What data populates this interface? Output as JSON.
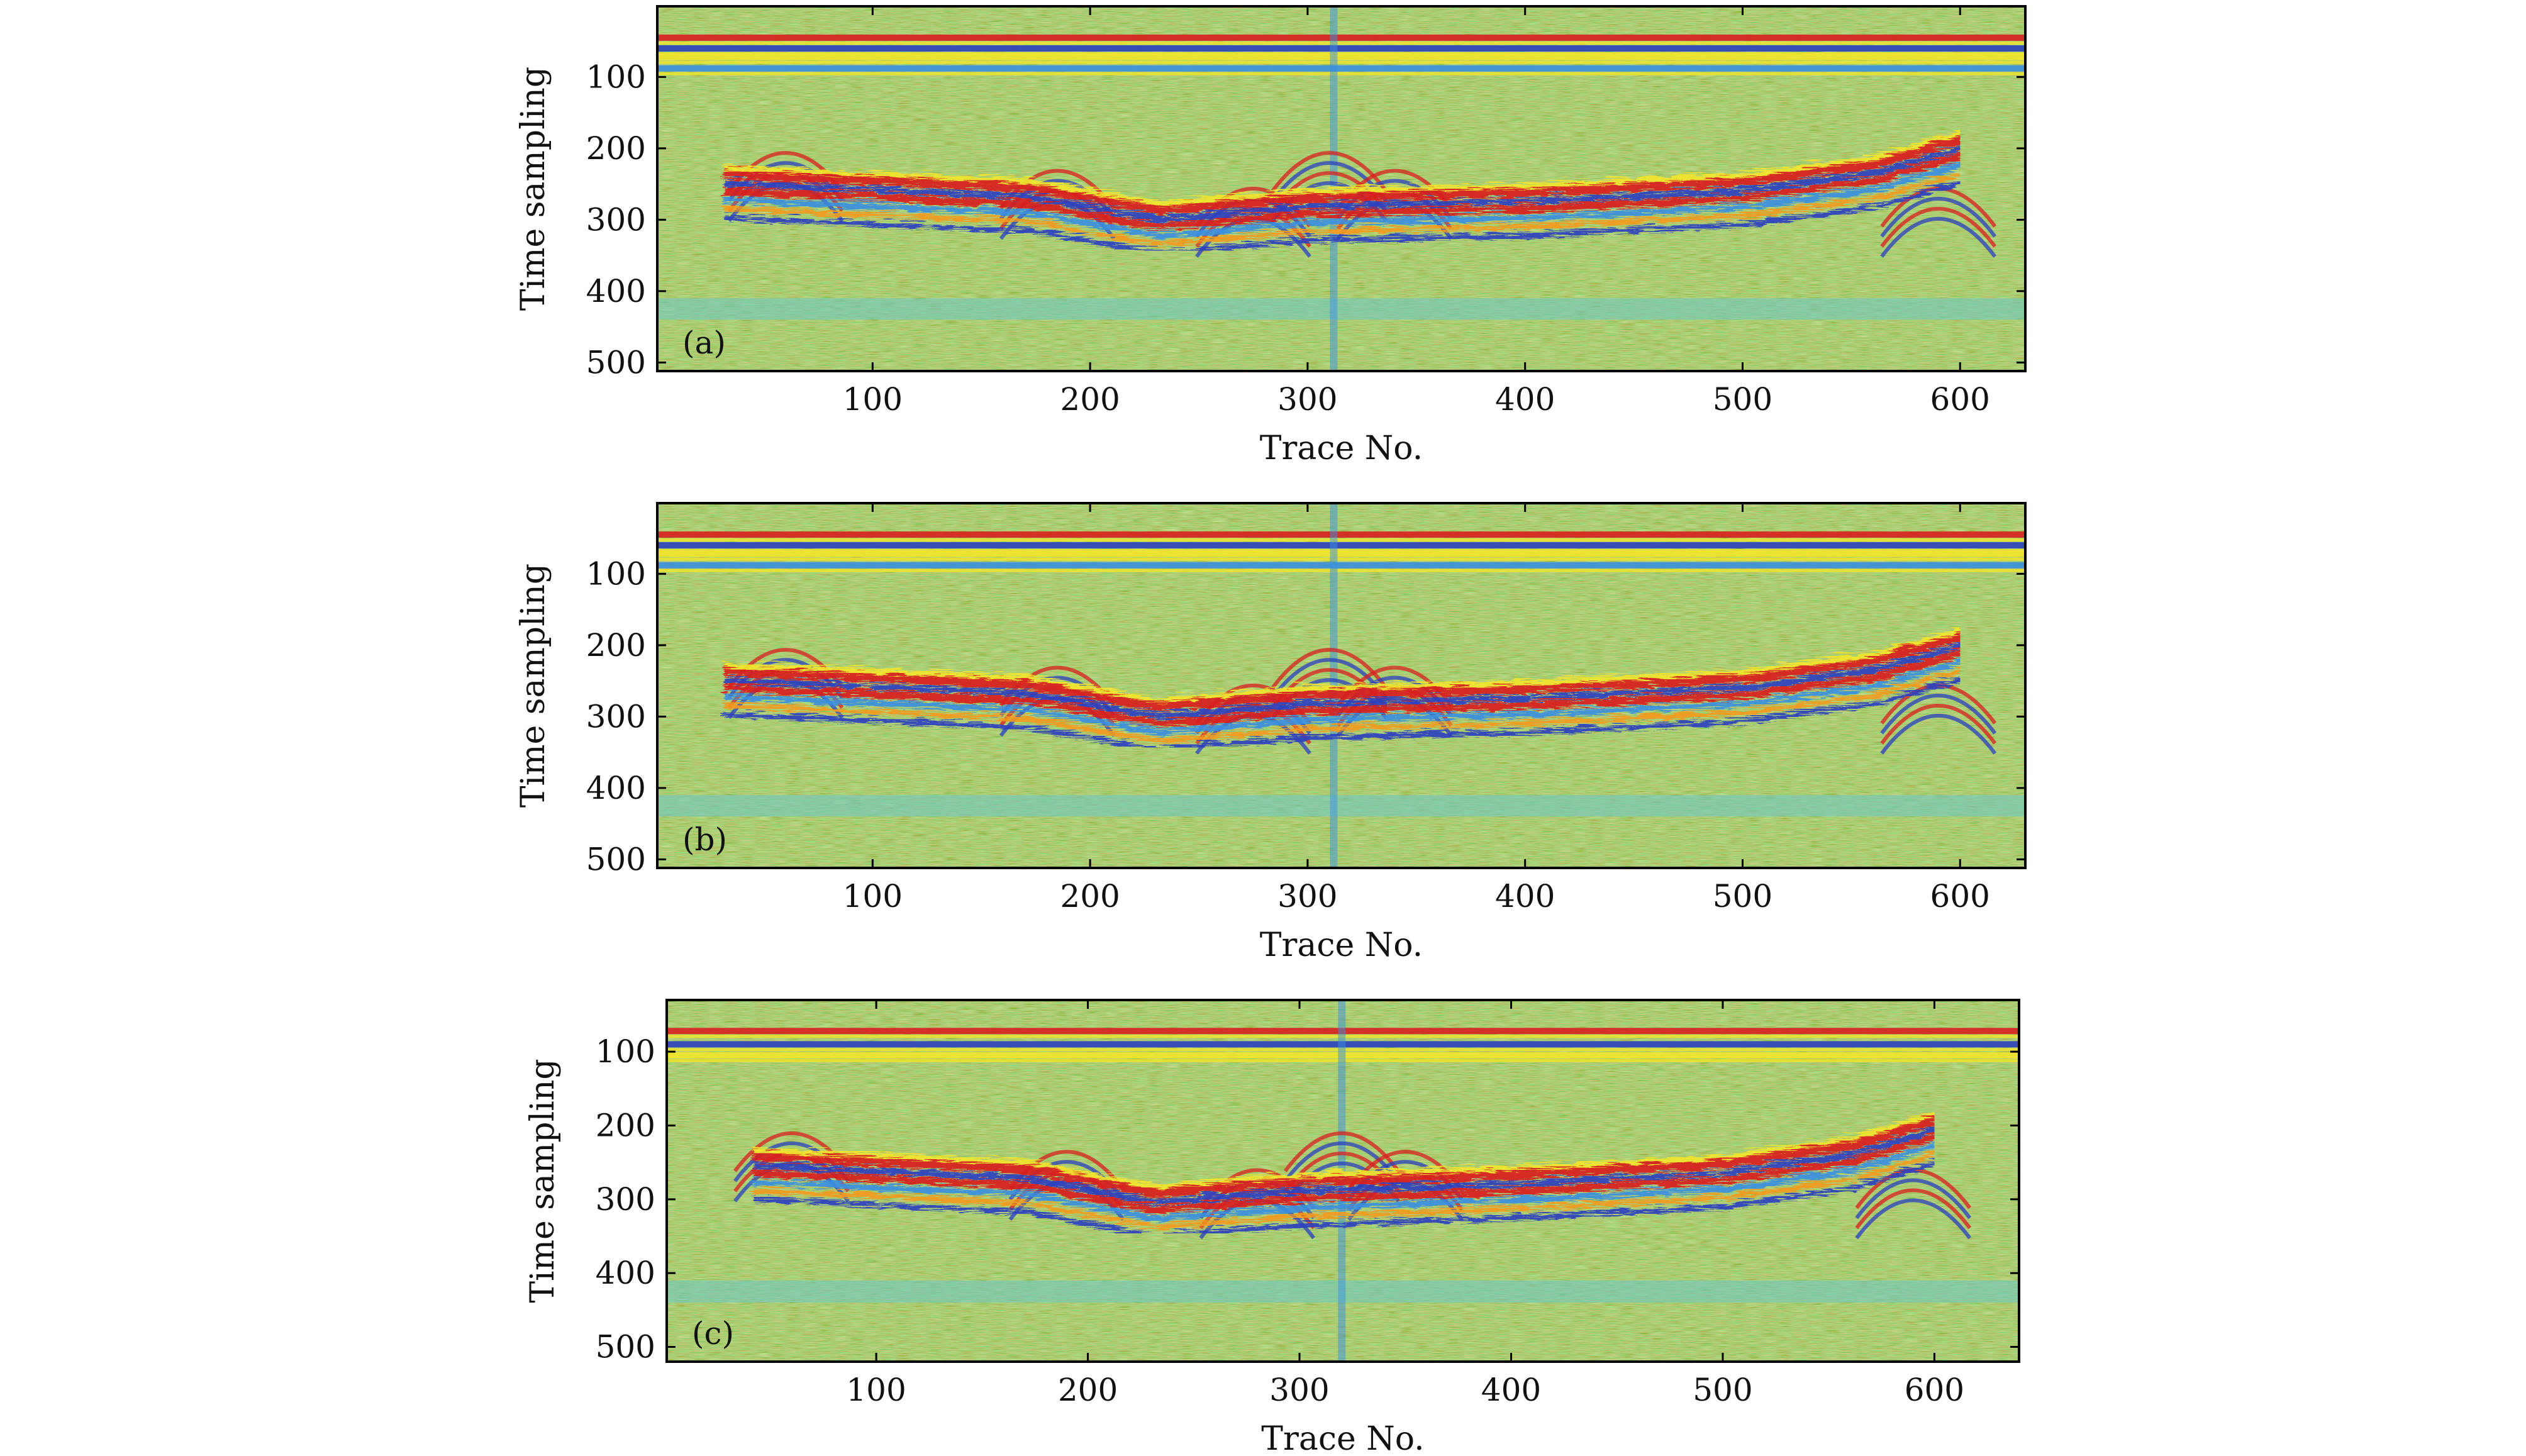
{
  "chart_data": [
    {
      "type": "heatmap",
      "panel_label": "(a)",
      "xlabel": "Trace No.",
      "ylabel": "Time sampling",
      "xticks": [
        "100",
        "200",
        "300",
        "400",
        "500",
        "600"
      ],
      "yticks": [
        "100",
        "200",
        "300",
        "400",
        "500"
      ],
      "xlim": [
        1,
        630
      ],
      "ylim": [
        512,
        1
      ],
      "y_axis_inverted": true,
      "colormap": [
        "#2a3fbf",
        "#3a8fe0",
        "#6cc7c9",
        "#a9d35f",
        "#f2e52a",
        "#f39a1e",
        "#d81f1f"
      ],
      "features": {
        "direct_wave_bands_time": [
          45,
          60,
          72,
          88
        ],
        "main_reflector": [
          {
            "trace": 30,
            "time": 240
          },
          {
            "trace": 170,
            "time": 258
          },
          {
            "trace": 230,
            "time": 290
          },
          {
            "trace": 300,
            "time": 272
          },
          {
            "trace": 400,
            "time": 265
          },
          {
            "trace": 500,
            "time": 250
          },
          {
            "trace": 560,
            "time": 225
          },
          {
            "trace": 600,
            "time": 190
          }
        ],
        "hyperbola_apex_traces": [
          60,
          185,
          275,
          310,
          340,
          590
        ],
        "bright_column_trace": 312,
        "low_band_time": [
          410,
          440
        ]
      }
    },
    {
      "type": "heatmap",
      "panel_label": "(b)",
      "xlabel": "Trace No.",
      "ylabel": "Time sampling",
      "xticks": [
        "100",
        "200",
        "300",
        "400",
        "500",
        "600"
      ],
      "yticks": [
        "100",
        "200",
        "300",
        "400",
        "500"
      ],
      "xlim": [
        1,
        630
      ],
      "ylim": [
        512,
        1
      ],
      "y_axis_inverted": true,
      "colormap": [
        "#2a3fbf",
        "#3a8fe0",
        "#6cc7c9",
        "#a9d35f",
        "#f2e52a",
        "#f39a1e",
        "#d81f1f"
      ],
      "features": {
        "direct_wave_bands_time": [
          45,
          60,
          72,
          88
        ],
        "main_reflector": [
          {
            "trace": 30,
            "time": 240
          },
          {
            "trace": 170,
            "time": 258
          },
          {
            "trace": 230,
            "time": 290
          },
          {
            "trace": 300,
            "time": 272
          },
          {
            "trace": 400,
            "time": 265
          },
          {
            "trace": 500,
            "time": 250
          },
          {
            "trace": 560,
            "time": 225
          },
          {
            "trace": 600,
            "time": 190
          }
        ],
        "hyperbola_apex_traces": [
          60,
          185,
          275,
          310,
          340,
          590
        ],
        "bright_column_trace": 312,
        "low_band_time": [
          410,
          440
        ]
      }
    },
    {
      "type": "heatmap",
      "panel_label": "(c)",
      "xlabel": "Trace No.",
      "ylabel": "Time sampling",
      "xticks": [
        "100",
        "200",
        "300",
        "400",
        "500",
        "600"
      ],
      "yticks": [
        "100",
        "200",
        "300",
        "400",
        "500"
      ],
      "xlim": [
        1,
        640
      ],
      "ylim": [
        520,
        30
      ],
      "y_axis_inverted": true,
      "colormap": [
        "#2a3fbf",
        "#3a8fe0",
        "#6cc7c9",
        "#a9d35f",
        "#f2e52a",
        "#f39a1e",
        "#d81f1f"
      ],
      "features": {
        "direct_wave_bands_time": [
          72,
          90,
          105
        ],
        "main_reflector": [
          {
            "trace": 40,
            "time": 245
          },
          {
            "trace": 170,
            "time": 262
          },
          {
            "trace": 230,
            "time": 295
          },
          {
            "trace": 300,
            "time": 280
          },
          {
            "trace": 400,
            "time": 270
          },
          {
            "trace": 500,
            "time": 255
          },
          {
            "trace": 560,
            "time": 230
          },
          {
            "trace": 600,
            "time": 195
          }
        ],
        "hyperbola_apex_traces": [
          60,
          190,
          280,
          320,
          350,
          590
        ],
        "bright_column_trace": 320,
        "low_band_time": [
          410,
          440
        ]
      }
    }
  ]
}
